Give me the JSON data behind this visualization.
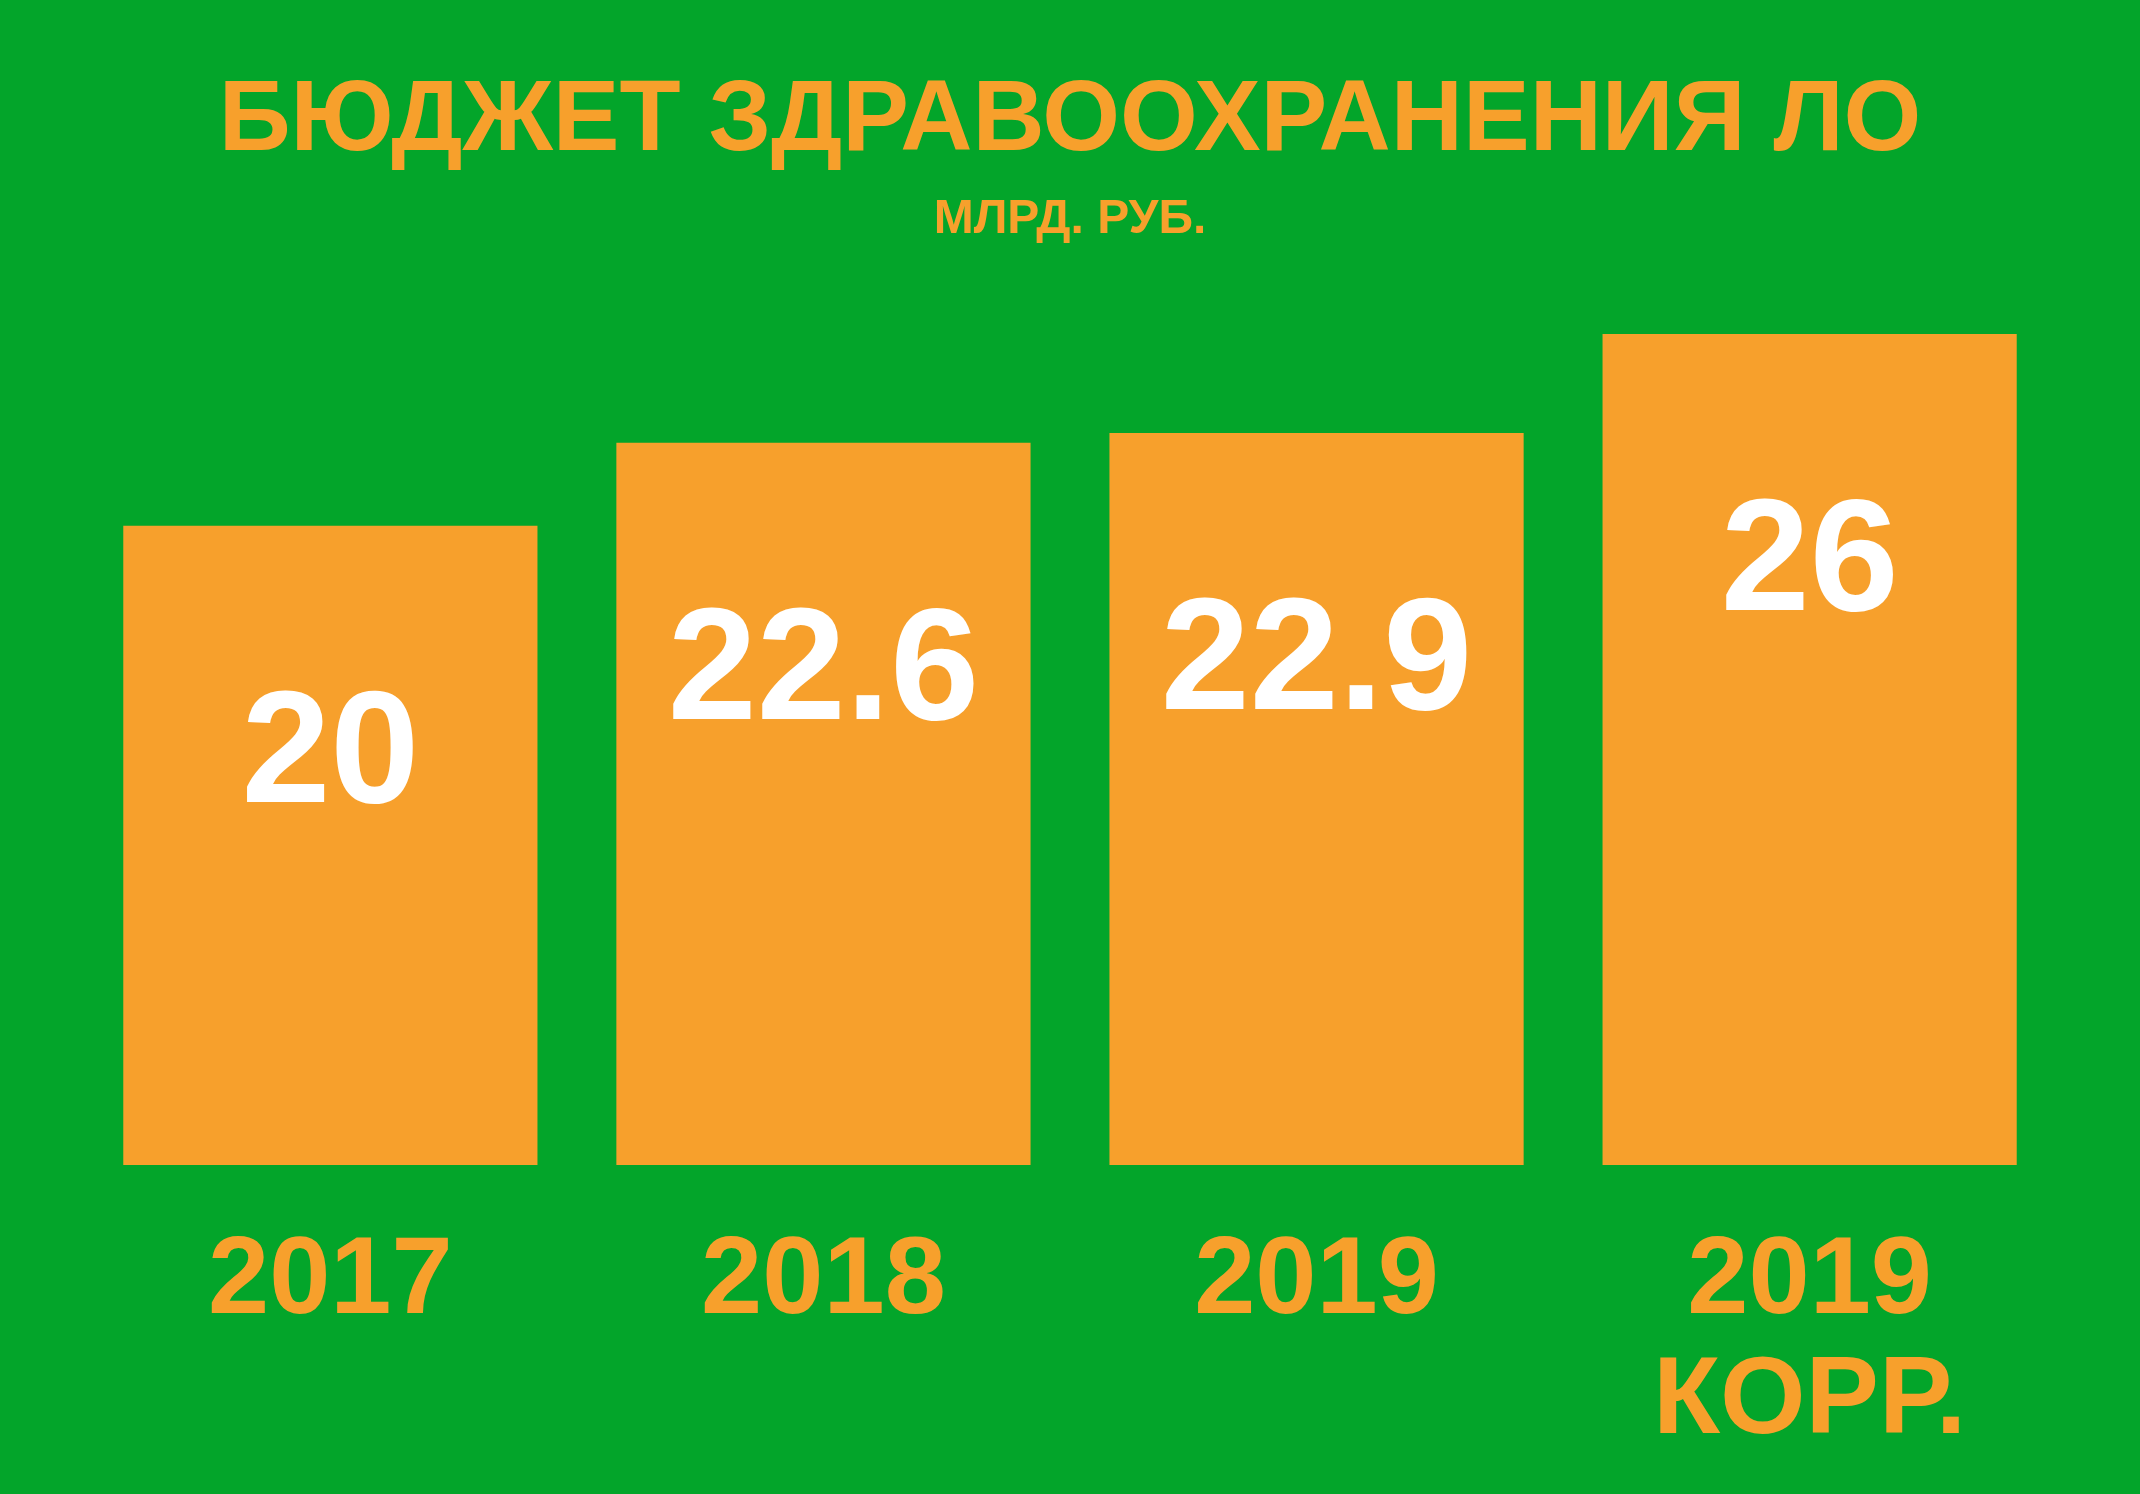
{
  "chart_data": {
    "type": "bar",
    "title": "БЮДЖЕТ ЗДРАВООХРАНЕНИЯ ЛО",
    "subtitle": "МЛРД. РУБ.",
    "categories": [
      "2017",
      "2018",
      "2019",
      "2019 КОРР."
    ],
    "values": [
      20,
      22.6,
      22.9,
      26
    ],
    "color": "#f7a02c",
    "data_labels": true
  }
}
